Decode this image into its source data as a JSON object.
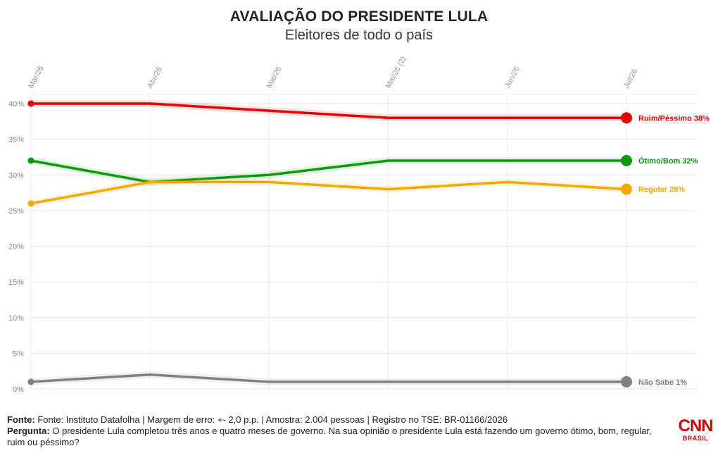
{
  "header": {
    "title": "AVALIAÇÃO DO PRESIDENTE LULA",
    "subtitle": "Eleitores de todo o país"
  },
  "chart_data": {
    "type": "line",
    "title": "AVALIAÇÃO DO PRESIDENTE LULA",
    "subtitle": "Eleitores de todo o país",
    "categories": [
      "Mar/26",
      "Abr/26",
      "Mai/26",
      "Mai/26 (2)",
      "Jun/26",
      "Jul/26"
    ],
    "ylim": [
      0,
      40
    ],
    "yticks": [
      0,
      5,
      10,
      15,
      20,
      25,
      30,
      35,
      40
    ],
    "ytick_labels": [
      "0%",
      "5%",
      "10%",
      "15%",
      "20%",
      "25%",
      "30%",
      "35%",
      "40%"
    ],
    "grid": true,
    "legend": "end-of-line labels",
    "series": [
      {
        "name": "Ruim/Péssimo",
        "end_label": "Ruim/Péssimo 38%",
        "color": "#e60000",
        "values": [
          40,
          40,
          39,
          38,
          38,
          38
        ]
      },
      {
        "name": "Ótimo/Bom",
        "end_label": "Ótimo/Bom 32%",
        "color": "#0b9a0b",
        "values": [
          32,
          29,
          30,
          32,
          32,
          32
        ]
      },
      {
        "name": "Regular",
        "end_label": "Regular 28%",
        "color": "#f5a800",
        "values": [
          26,
          29,
          29,
          28,
          29,
          28
        ]
      },
      {
        "name": "Não Sabe",
        "end_label": "Não Sabe 1%",
        "color": "#808080",
        "values": [
          1,
          2,
          1,
          1,
          1,
          1
        ]
      }
    ]
  },
  "footer": {
    "source_label": "Fonte:",
    "source_text": " Fonte: Instituto Datafolha | Margem de erro: +- 2,0 p.p. | Amostra: 2.004 pessoas | Registro no TSE: BR-01166/2026",
    "question_label": "Pergunta:",
    "question_text": " O presidente Lula completou três anos e quatro meses de governo. Na sua opinião o presidente Lula está fazendo um governo ótimo, bom, regular, ruim ou péssimo?"
  },
  "logo": {
    "text": "CNN",
    "sub": "BRASIL"
  }
}
